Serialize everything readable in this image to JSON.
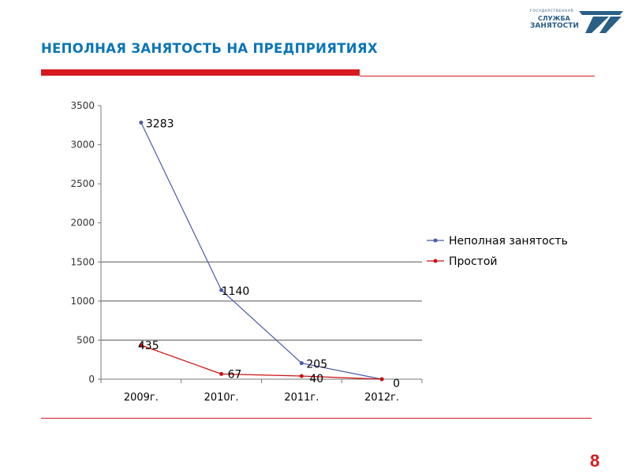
{
  "slide": {
    "title": "НЕПОЛНАЯ ЗАНЯТОСТЬ НА ПРЕДПРИЯТИЯХ",
    "page_number": "8"
  },
  "logo": {
    "line_small": "ГОСУДАРСТВЕННАЯ",
    "line1": "СЛУЖБА",
    "line2": "ЗАНЯТОСТИ"
  },
  "colors": {
    "title": "#0a75b8",
    "accent_red": "#d71920",
    "series1": "#4a5aa8",
    "series2": "#cc1010"
  },
  "chart_data": {
    "type": "line",
    "title": "",
    "xlabel": "",
    "ylabel": "",
    "categories": [
      "2009г.",
      "2010г.",
      "2011г.",
      "2012г."
    ],
    "series": [
      {
        "name": "Неполная занятость",
        "values": [
          3283,
          1140,
          205,
          0
        ],
        "labels": [
          "3283",
          "1140",
          "205",
          "0"
        ]
      },
      {
        "name": "Простой",
        "values": [
          435,
          67,
          40,
          0
        ],
        "labels": [
          "435",
          "67",
          "40",
          ""
        ]
      }
    ],
    "ylim": [
      0,
      3500
    ],
    "yticks": [
      0,
      500,
      1000,
      1500,
      2000,
      2500,
      3000,
      3500
    ],
    "grid": true,
    "legend": "right"
  }
}
